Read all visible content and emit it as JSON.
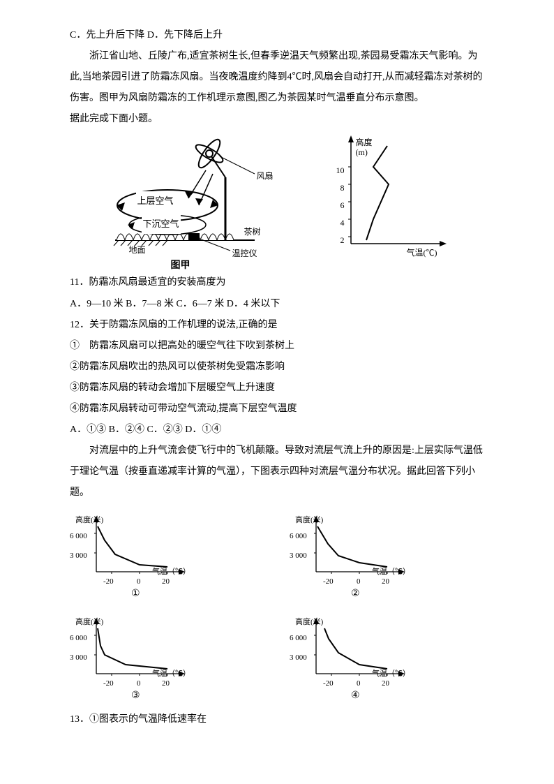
{
  "options_cd": "C．先上升后下降 D．先下降后上升",
  "passage1": "浙江省山地、丘陵广布,适宜茶树生长,但春季逆温天气频繁出现,茶园易受霜冻天气影响。为此,当地茶园引进了防霜冻风扇。当夜晚温度约降到4℃时,风扇会自动打开,从而减轻霜冻对茶树的伤害。图甲为风扇防霜冻的工作机理示意图,图乙为茶园某时气温垂直分布示意图。",
  "passage1_tail": "据此完成下面小题。",
  "fan": {
    "label_fan": "风扇",
    "label_upper": "上层空气",
    "label_sink": "下沉空气",
    "label_tea": "茶树",
    "label_controller": "温控仪",
    "label_ground": "地面",
    "caption": "图甲",
    "axis_y": "高度",
    "axis_y_unit": "(m)",
    "axis_x": "气温(℃)",
    "ticks": [
      "10",
      "8",
      "6",
      "4",
      "2"
    ],
    "poly": [
      [
        30,
        150
      ],
      [
        35,
        130
      ],
      [
        50,
        100
      ],
      [
        40,
        60
      ],
      [
        60,
        20
      ]
    ]
  },
  "q11": "11．防霜冻风扇最适宜的安装高度为",
  "q11_opts": "A．9—10 米 B．7—8 米  C．6—7 米   D．4 米以下",
  "q12": "12．关于防霜冻风扇的工作机理的说法,正确的是",
  "q12_1": "①　防霜冻风扇可以把高处的暖空气往下吹到茶树上",
  "q12_2": "②防霜冻风扇吹出的热风可以使茶树免受霜冻影响",
  "q12_3": "③防霜冻风扇的转动会增加下层暖空气上升速度",
  "q12_4": "④防霜冻风扇转动可带动空气流动,提高下层空气温度",
  "q12_opts": "A．①③ B．②④ C．②③ D．①④",
  "passage2": "对流层中的上升气流会使飞行中的飞机颠簸。导致对流层气流上升的原因是:上层实际气温低于理论气温（按垂直递减率计算的气温），下图表示四种对流层气温分布状况。据此回答下列小题。",
  "mini": {
    "y_label": "高度(米)",
    "x_label": "气温（℃）",
    "y_ticks": [
      "6 000",
      "3 000"
    ],
    "x_ticks": [
      "-20",
      "0",
      "20"
    ],
    "nums": [
      "①",
      "②",
      "③",
      "④"
    ],
    "curves": {
      "1": [
        [
          40,
          20
        ],
        [
          50,
          40
        ],
        [
          65,
          60
        ],
        [
          100,
          75
        ],
        [
          140,
          78
        ]
      ],
      "2": [
        [
          40,
          20
        ],
        [
          55,
          45
        ],
        [
          70,
          62
        ],
        [
          100,
          72
        ],
        [
          140,
          78
        ]
      ],
      "3": [
        [
          40,
          20
        ],
        [
          44,
          45
        ],
        [
          50,
          58
        ],
        [
          80,
          72
        ],
        [
          140,
          78
        ]
      ],
      "4": [
        [
          50,
          20
        ],
        [
          56,
          35
        ],
        [
          70,
          55
        ],
        [
          100,
          72
        ],
        [
          140,
          78
        ]
      ]
    }
  },
  "q13": "13．①图表示的气温降低速率在",
  "colors": {
    "stroke": "#000000",
    "bg": "#ffffff"
  }
}
